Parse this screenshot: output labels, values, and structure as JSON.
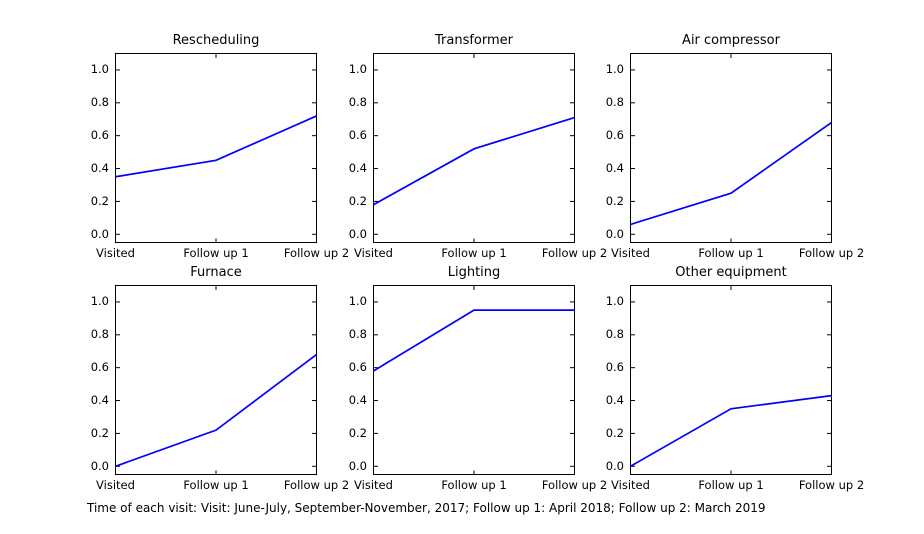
{
  "figure": {
    "background": "#ffffff",
    "caption": "Time of each visit: Visit: June-July, September-November, 2017; Follow up 1: April 2018; Follow up 2: March 2019"
  },
  "chart_data": {
    "type": "line",
    "categories": [
      "Visited",
      "Follow up 1",
      "Follow up 2"
    ],
    "yticks": [
      "0.0",
      "0.2",
      "0.4",
      "0.6",
      "0.8",
      "1.0"
    ],
    "ylim": [
      -0.05,
      1.1
    ],
    "grid": "off",
    "legend": "none",
    "line_color": "#0000ff",
    "axis_color": "#000000",
    "charts": [
      {
        "title": "Rescheduling",
        "values": [
          0.35,
          0.45,
          0.72
        ]
      },
      {
        "title": "Transformer",
        "values": [
          0.18,
          0.52,
          0.71
        ]
      },
      {
        "title": "Air compressor",
        "values": [
          0.06,
          0.25,
          0.68
        ]
      },
      {
        "title": "Furnace",
        "values": [
          0.0,
          0.22,
          0.68
        ]
      },
      {
        "title": "Lighting",
        "values": [
          0.58,
          0.95,
          0.95
        ]
      },
      {
        "title": "Other equipment",
        "values": [
          0.0,
          0.35,
          0.43
        ]
      }
    ]
  }
}
